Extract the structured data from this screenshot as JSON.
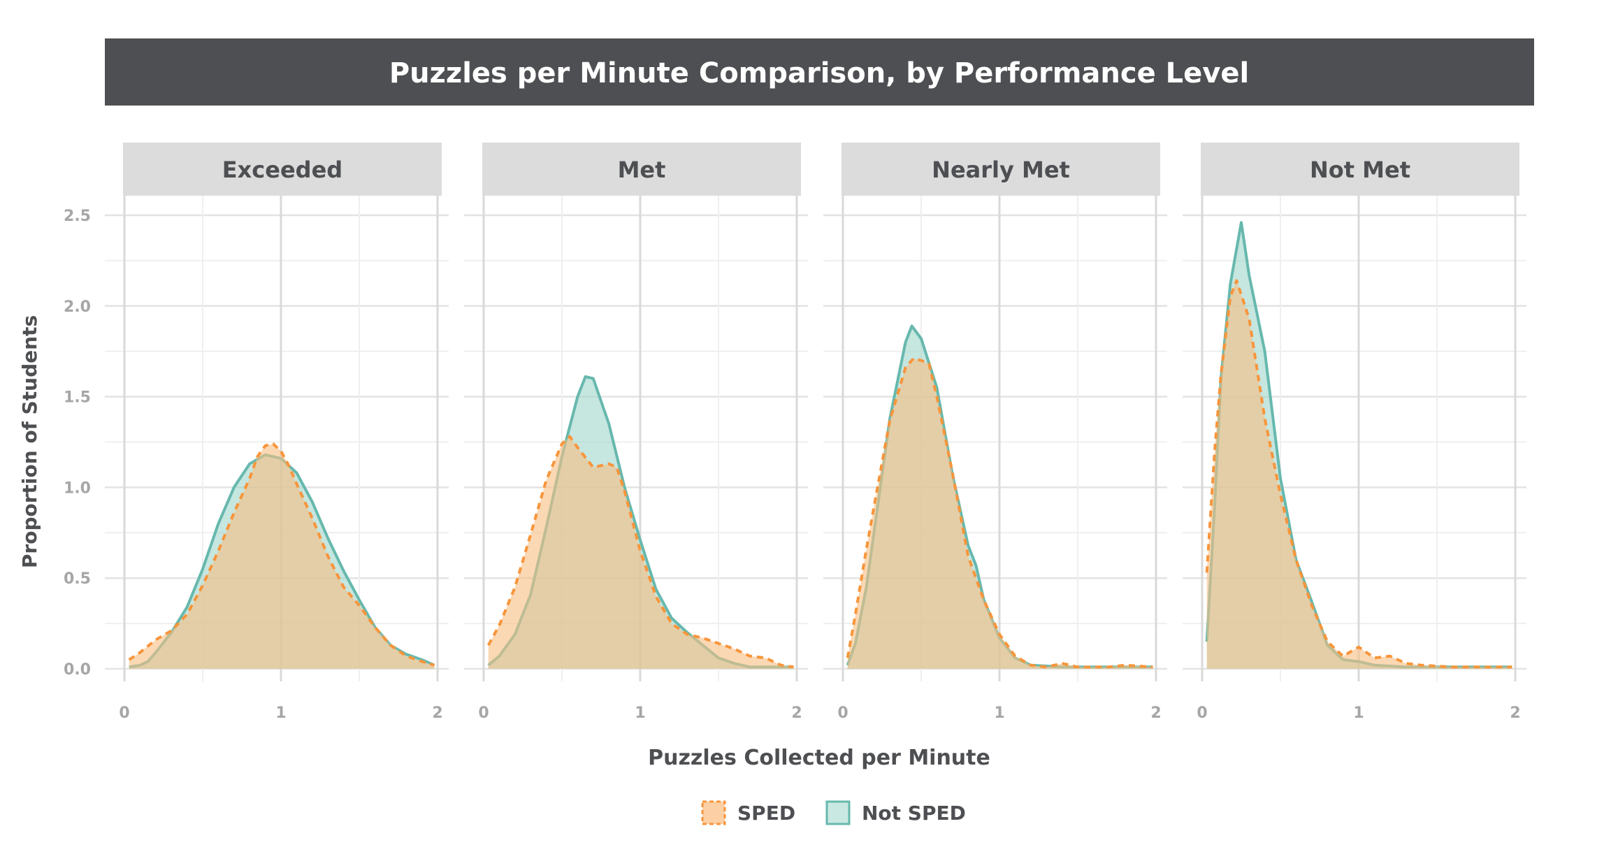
{
  "chart_data": {
    "type": "area",
    "title": "Puzzles per Minute Comparison, by Performance Level",
    "xlabel": "Puzzles Collected per Minute",
    "ylabel": "Proportion of Students",
    "xlim": [
      0,
      2
    ],
    "ylim": [
      0,
      2.5
    ],
    "x_ticks": [
      "0",
      "1",
      "2"
    ],
    "y_ticks": [
      "0.0",
      "0.5",
      "1.0",
      "1.5",
      "2.0",
      "2.5"
    ],
    "grid": true,
    "legend_position": "bottom",
    "legend": [
      {
        "name": "SPED",
        "fill": "#fccfa4",
        "stroke": "#f7953b",
        "dashed": true
      },
      {
        "name": "Not SPED",
        "fill": "#c9e8e2",
        "stroke": "#67b8ad",
        "dashed": false
      }
    ],
    "panels": [
      {
        "name": "Exceeded",
        "series": [
          {
            "name": "SPED",
            "points": [
              [
                0.03,
                0.05
              ],
              [
                0.1,
                0.09
              ],
              [
                0.2,
                0.16
              ],
              [
                0.3,
                0.21
              ],
              [
                0.4,
                0.3
              ],
              [
                0.5,
                0.46
              ],
              [
                0.6,
                0.65
              ],
              [
                0.7,
                0.86
              ],
              [
                0.8,
                1.05
              ],
              [
                0.85,
                1.17
              ],
              [
                0.9,
                1.23
              ],
              [
                0.95,
                1.24
              ],
              [
                1.0,
                1.2
              ],
              [
                1.05,
                1.12
              ],
              [
                1.1,
                1.02
              ],
              [
                1.2,
                0.83
              ],
              [
                1.3,
                0.62
              ],
              [
                1.4,
                0.45
              ],
              [
                1.5,
                0.35
              ],
              [
                1.6,
                0.23
              ],
              [
                1.7,
                0.13
              ],
              [
                1.8,
                0.07
              ],
              [
                1.9,
                0.04
              ],
              [
                1.98,
                0.02
              ]
            ]
          },
          {
            "name": "Not SPED",
            "points": [
              [
                0.03,
                0.01
              ],
              [
                0.1,
                0.02
              ],
              [
                0.15,
                0.04
              ],
              [
                0.2,
                0.09
              ],
              [
                0.3,
                0.2
              ],
              [
                0.4,
                0.34
              ],
              [
                0.5,
                0.55
              ],
              [
                0.6,
                0.8
              ],
              [
                0.7,
                1.0
              ],
              [
                0.8,
                1.13
              ],
              [
                0.9,
                1.18
              ],
              [
                1.0,
                1.16
              ],
              [
                1.1,
                1.08
              ],
              [
                1.2,
                0.92
              ],
              [
                1.3,
                0.72
              ],
              [
                1.4,
                0.54
              ],
              [
                1.5,
                0.38
              ],
              [
                1.6,
                0.23
              ],
              [
                1.7,
                0.13
              ],
              [
                1.8,
                0.08
              ],
              [
                1.9,
                0.05
              ],
              [
                1.98,
                0.02
              ]
            ]
          }
        ]
      },
      {
        "name": "Met",
        "series": [
          {
            "name": "SPED",
            "points": [
              [
                0.03,
                0.13
              ],
              [
                0.1,
                0.24
              ],
              [
                0.2,
                0.45
              ],
              [
                0.3,
                0.74
              ],
              [
                0.4,
                1.04
              ],
              [
                0.5,
                1.24
              ],
              [
                0.55,
                1.28
              ],
              [
                0.6,
                1.22
              ],
              [
                0.7,
                1.11
              ],
              [
                0.8,
                1.13
              ],
              [
                0.85,
                1.11
              ],
              [
                0.9,
                0.98
              ],
              [
                1.0,
                0.65
              ],
              [
                1.1,
                0.4
              ],
              [
                1.2,
                0.25
              ],
              [
                1.3,
                0.19
              ],
              [
                1.4,
                0.17
              ],
              [
                1.5,
                0.14
              ],
              [
                1.6,
                0.11
              ],
              [
                1.7,
                0.07
              ],
              [
                1.8,
                0.06
              ],
              [
                1.9,
                0.02
              ],
              [
                1.98,
                0.01
              ]
            ]
          },
          {
            "name": "Not SPED",
            "points": [
              [
                0.03,
                0.02
              ],
              [
                0.1,
                0.07
              ],
              [
                0.2,
                0.19
              ],
              [
                0.3,
                0.41
              ],
              [
                0.4,
                0.78
              ],
              [
                0.5,
                1.17
              ],
              [
                0.6,
                1.5
              ],
              [
                0.65,
                1.61
              ],
              [
                0.7,
                1.6
              ],
              [
                0.8,
                1.35
              ],
              [
                0.9,
                1.0
              ],
              [
                1.0,
                0.71
              ],
              [
                1.1,
                0.44
              ],
              [
                1.2,
                0.28
              ],
              [
                1.3,
                0.2
              ],
              [
                1.4,
                0.13
              ],
              [
                1.5,
                0.06
              ],
              [
                1.6,
                0.03
              ],
              [
                1.7,
                0.01
              ],
              [
                1.8,
                0.01
              ],
              [
                1.98,
                0.01
              ]
            ]
          }
        ]
      },
      {
        "name": "Nearly Met",
        "series": [
          {
            "name": "SPED",
            "points": [
              [
                0.03,
                0.06
              ],
              [
                0.08,
                0.3
              ],
              [
                0.15,
                0.66
              ],
              [
                0.2,
                0.9
              ],
              [
                0.3,
                1.37
              ],
              [
                0.4,
                1.66
              ],
              [
                0.45,
                1.71
              ],
              [
                0.5,
                1.7
              ],
              [
                0.55,
                1.68
              ],
              [
                0.6,
                1.5
              ],
              [
                0.7,
                1.08
              ],
              [
                0.8,
                0.62
              ],
              [
                0.9,
                0.38
              ],
              [
                1.0,
                0.19
              ],
              [
                1.1,
                0.07
              ],
              [
                1.2,
                0.02
              ],
              [
                1.3,
                0.01
              ],
              [
                1.4,
                0.03
              ],
              [
                1.5,
                0.01
              ],
              [
                1.7,
                0.01
              ],
              [
                1.8,
                0.02
              ],
              [
                1.98,
                0.01
              ]
            ]
          },
          {
            "name": "Not SPED",
            "points": [
              [
                0.03,
                0.02
              ],
              [
                0.08,
                0.14
              ],
              [
                0.15,
                0.45
              ],
              [
                0.2,
                0.76
              ],
              [
                0.3,
                1.38
              ],
              [
                0.4,
                1.8
              ],
              [
                0.44,
                1.89
              ],
              [
                0.5,
                1.82
              ],
              [
                0.6,
                1.55
              ],
              [
                0.7,
                1.07
              ],
              [
                0.8,
                0.68
              ],
              [
                0.85,
                0.57
              ],
              [
                0.9,
                0.38
              ],
              [
                1.0,
                0.17
              ],
              [
                1.1,
                0.06
              ],
              [
                1.2,
                0.02
              ],
              [
                1.4,
                0.01
              ],
              [
                1.98,
                0.01
              ]
            ]
          }
        ]
      },
      {
        "name": "Not Met",
        "series": [
          {
            "name": "SPED",
            "points": [
              [
                0.03,
                0.53
              ],
              [
                0.08,
                1.2
              ],
              [
                0.12,
                1.62
              ],
              [
                0.18,
                2.05
              ],
              [
                0.22,
                2.14
              ],
              [
                0.3,
                1.93
              ],
              [
                0.4,
                1.38
              ],
              [
                0.5,
                0.96
              ],
              [
                0.6,
                0.6
              ],
              [
                0.7,
                0.35
              ],
              [
                0.8,
                0.15
              ],
              [
                0.9,
                0.07
              ],
              [
                1.0,
                0.12
              ],
              [
                1.1,
                0.06
              ],
              [
                1.2,
                0.07
              ],
              [
                1.3,
                0.03
              ],
              [
                1.4,
                0.02
              ],
              [
                1.6,
                0.01
              ],
              [
                1.98,
                0.01
              ]
            ]
          },
          {
            "name": "Not SPED",
            "points": [
              [
                0.03,
                0.15
              ],
              [
                0.08,
                0.9
              ],
              [
                0.12,
                1.6
              ],
              [
                0.18,
                2.12
              ],
              [
                0.25,
                2.46
              ],
              [
                0.3,
                2.17
              ],
              [
                0.4,
                1.75
              ],
              [
                0.5,
                1.05
              ],
              [
                0.6,
                0.6
              ],
              [
                0.7,
                0.37
              ],
              [
                0.8,
                0.13
              ],
              [
                0.9,
                0.05
              ],
              [
                1.0,
                0.04
              ],
              [
                1.1,
                0.02
              ],
              [
                1.3,
                0.01
              ],
              [
                1.98,
                0.01
              ]
            ]
          }
        ]
      }
    ]
  }
}
